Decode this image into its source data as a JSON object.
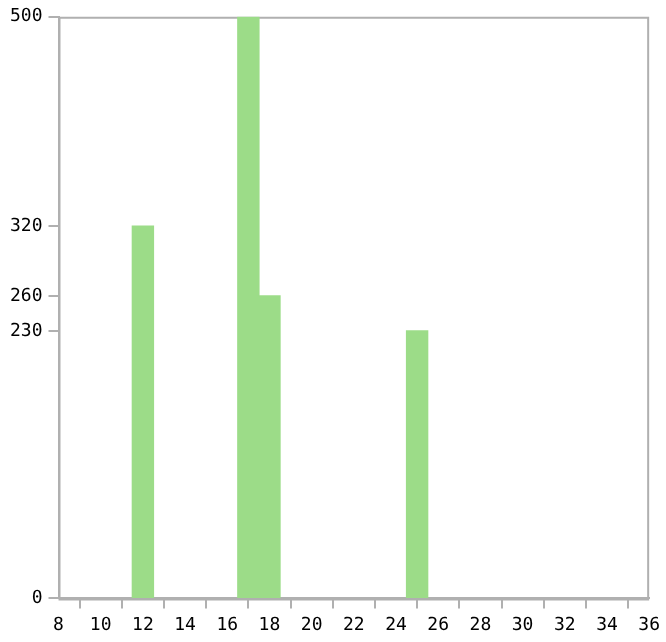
{
  "chart_data": {
    "type": "bar",
    "x": [
      12,
      17,
      18,
      25
    ],
    "values": [
      320,
      500,
      260,
      230
    ],
    "color": "#9cdc88",
    "xlim": [
      8,
      36
    ],
    "xticks": [
      8,
      10,
      12,
      14,
      16,
      18,
      20,
      22,
      24,
      26,
      28,
      30,
      32,
      34,
      36
    ],
    "ylim": [
      0,
      500
    ],
    "yticks": [
      0,
      230,
      260,
      320,
      500
    ],
    "grid": false,
    "legend": false
  }
}
